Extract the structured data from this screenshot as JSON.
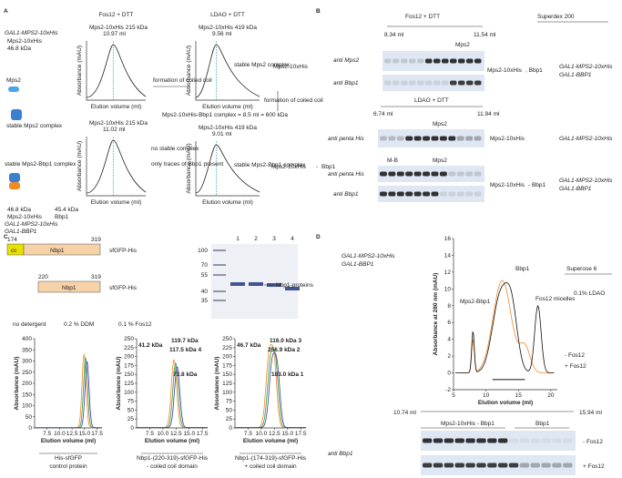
{
  "panel_a": {
    "letter": "A",
    "construct": "GAL1-MPS2-10xHis",
    "protein": "Mps2-10xHis",
    "mass": "46.8 kDa",
    "mps2": "Mps2",
    "stable_complex": "stable Mps2 complex",
    "stable_bbp1_complex": "stable Mps2-Bbp1 complex",
    "mass_mps2": "46.8 kDa",
    "mass_bbp1": "45.4 kDa",
    "label_mps2": "Mps2-10xHis",
    "label_bbp1": "Bbp1",
    "construct_mps2": "GAL1-MPS2-10xHis",
    "construct_bbp1": "GAL1-BBP1",
    "plots": [
      {
        "title": "Fos12 + DTT",
        "peak": "Mps2-10xHis 215 kDa",
        "volume": "10.97 ml",
        "x_label": "Elution volume (ml)",
        "y_label": "Absorbance (mAU)"
      },
      {
        "title": "LDAO + DTT",
        "peak": "Mps2-10xHis 419 kDa",
        "volume": "9.56 ml",
        "note": "stable Mps2 complex",
        "x_label": "Elution volume (ml)",
        "y_label": "Absorbance (mAU)"
      },
      {
        "peak": "Mps2-10xHis 215 kDa",
        "volume": "11.02 ml",
        "x_label": "Elution volume (ml)",
        "y_label": "Absorbance (mAU)"
      },
      {
        "peak": "Mps2-10xHis 419 kDa",
        "volume": "9.01 ml",
        "note": "stable Mps2-Bbp1 complex",
        "x_label": "Elution volume (ml)",
        "y_label": "Absorbance (mAU)"
      }
    ],
    "coiled_coil_1": "formation of coiled coil",
    "coiled_coil_2": "formation of coiled coil",
    "no_complex": "no stable complex",
    "traces": "only traces of Bbp1 present",
    "complex_note": "Mps2-10xHis-Bbp1 complex = 8.5 ml = 600 kDa",
    "row1_protein": "Mps2-10xHis",
    "row2_protein": "Mps2-10xHis",
    "row2_sep": "-",
    "row2_partner": "Bbp1"
  },
  "panel_b": {
    "letter": "B",
    "column": "Superdex 200",
    "blots": [
      {
        "condition": "Fos12 + DTT",
        "start": "8.34 ml",
        "end": "11.54 ml",
        "band": "Mps2",
        "rows": [
          "anti Mps2",
          "anti Bbp1"
        ],
        "protein": "Mps2-10xHis",
        "partner": ", Bbp1",
        "constructs": [
          "GAL1-MPS2-10xHis",
          "GAL1-BBP1"
        ]
      },
      {
        "condition": "LDAO + DTT",
        "start": "6.74 ml",
        "end": "11.94 ml",
        "band": "Mps2",
        "rows": [
          "anti penta His"
        ],
        "protein": "Mps2-10xHis",
        "constructs": [
          "GAL1-MPS2-10xHis"
        ]
      },
      {
        "band_mb": "M-B",
        "band": "Mps2",
        "rows": [
          "anti penta His",
          "anti Bbp1"
        ],
        "protein": "Mps2-10xHis",
        "partner": " - Bbp1",
        "constructs": [
          "GAL1-MPS2-10xHis",
          "GAL1-BBP1"
        ]
      }
    ]
  },
  "panel_c": {
    "letter": "C",
    "constructs": [
      {
        "start": "174",
        "end": "319",
        "cc": "cc",
        "domain": "Nbp1",
        "tag": "sfGFP-His"
      },
      {
        "start": "220",
        "end": "319",
        "domain": "Nbp1",
        "tag": "sfGFP-His"
      }
    ],
    "gel": {
      "lanes": [
        "1",
        "2",
        "3",
        "4"
      ],
      "markers": [
        "100",
        "70",
        "55",
        "40",
        "35"
      ],
      "band_label": "Nbp1-proteins"
    },
    "legend": [
      {
        "name": "no detergent",
        "color": "#f08a24"
      },
      {
        "name": "0.2 % DDM",
        "color": "#2e9b3a"
      },
      {
        "name": "0.1 % Fos12",
        "color": "#3b3ba8"
      }
    ],
    "charts": [
      {
        "type": "line",
        "y_label": "Absorbance (mAU)",
        "x_label": "Elution volume (ml)",
        "xlim": [
          5,
          18.5
        ],
        "ylim": [
          0,
          400
        ],
        "xticks": [
          7.5,
          {
            "value": 10,
            "label": "10.0"
          },
          12.5,
          {
            "value": 15,
            "label": "15.0"
          },
          17.5
        ],
        "yticks": [
          0,
          50,
          100,
          150,
          200,
          250,
          300,
          350,
          400
        ],
        "caption": [
          "His-sfGFP",
          "control protein"
        ],
        "annotations": []
      },
      {
        "type": "line",
        "y_label": "Absorbance (mAU)",
        "x_label": "Elution volume (ml)",
        "xlim": [
          5,
          18.5
        ],
        "ylim": [
          0,
          250
        ],
        "xticks": [
          7.5,
          {
            "value": 10,
            "label": "10.0"
          },
          12.5,
          {
            "value": 15,
            "label": "15.0"
          },
          17.5
        ],
        "yticks": [
          0,
          25,
          50,
          75,
          100,
          125,
          150,
          175,
          200,
          225,
          250
        ],
        "caption": [
          "Nbp1-(220-319)-sfGFP-His",
          "- coiled coil domain"
        ],
        "annotations": [
          "41.2 kDa",
          "119.7 kDa",
          "117.5 kDa 4",
          "73.8 kDa"
        ]
      },
      {
        "type": "line",
        "y_label": "Absorbance (mAU)",
        "x_label": "Elution volume (ml)",
        "xlim": [
          5,
          18.5
        ],
        "ylim": [
          0,
          250
        ],
        "xticks": [
          7.5,
          {
            "value": 10,
            "label": "10.0"
          },
          12.5,
          {
            "value": 15,
            "label": "15.0"
          },
          17.5
        ],
        "yticks": [
          0,
          25,
          50,
          75,
          100,
          125,
          150,
          175,
          200,
          225,
          250
        ],
        "caption": [
          "Nbp1-(174-319)-sfGFP-His",
          "+ coiled coil domain"
        ],
        "annotations": [
          "46.7 kDa",
          "116.0 kDa 3",
          "256.9 kDa 2",
          "183.0 kDa 1"
        ]
      }
    ]
  },
  "panel_d": {
    "letter": "D",
    "constructs": [
      "GAL1-MPS2-10xHis",
      "GAL1-BBP1"
    ],
    "chart": {
      "type": "line",
      "y_label": "Absorbance at 280 nm (mAU)",
      "x_label": "Elution volume (ml)",
      "xlim": [
        5,
        21
      ],
      "ylim": [
        -2,
        16
      ],
      "xticks": [
        5,
        10,
        15,
        20
      ],
      "yticks": [
        -2,
        0,
        2,
        4,
        6,
        8,
        10,
        12,
        14,
        16
      ],
      "annotations": [
        "Bbp1",
        "Mps2-Bbp1",
        "Fos12 micelles"
      ],
      "column": "Superose 6",
      "detergent": "0.1% LDAO",
      "series": [
        {
          "name": "- Fos12",
          "color": "#f08a24"
        },
        {
          "name": "+ Fos12",
          "color": "#111111"
        }
      ]
    },
    "blot": {
      "start": "10.74 ml",
      "end": "15.94 ml",
      "band1": "Mps2-10xHis - Bbp1",
      "band2": "Bbp1",
      "antibody": "anti Bbp1",
      "rows": [
        "- Fos12",
        "+ Fos12"
      ]
    }
  }
}
